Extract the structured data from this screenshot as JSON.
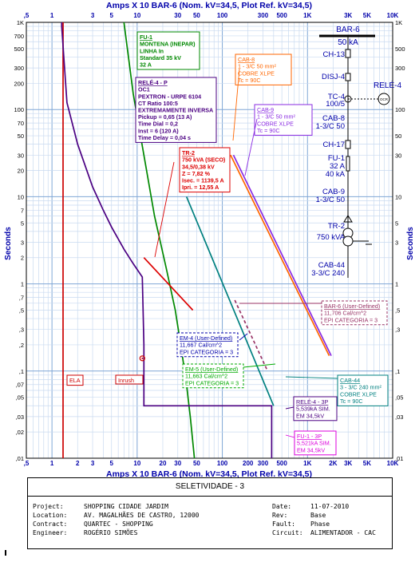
{
  "header": {
    "top_axis_title": "Amps X 10  BAR-6 (Nom. kV=34,5, Plot Ref. kV=34,5)",
    "bottom_axis_title": "Amps X 10  BAR-6 (Nom. kV=34,5, Plot Ref. kV=34,5)"
  },
  "chart_data": {
    "type": "line",
    "scale": "log-log",
    "xlabel": "Amps X 10  BAR-6 (Nom. kV=34,5, Plot Ref. kV=34,5)",
    "ylabel": "Seconds",
    "xlim": [
      0.5,
      10000
    ],
    "ylim": [
      0.01,
      1000
    ],
    "x_ticks": [
      {
        "v": 0.5,
        "label": ",5"
      },
      {
        "v": 1,
        "label": "1"
      },
      {
        "v": 3,
        "label": "3"
      },
      {
        "v": 5,
        "label": "5"
      },
      {
        "v": 10,
        "label": "10"
      },
      {
        "v": 30,
        "label": "30"
      },
      {
        "v": 50,
        "label": "50"
      },
      {
        "v": 100,
        "label": "100"
      },
      {
        "v": 300,
        "label": "300"
      },
      {
        "v": 500,
        "label": "500"
      },
      {
        "v": 1000,
        "label": "1K"
      },
      {
        "v": 3000,
        "label": "3K"
      },
      {
        "v": 5000,
        "label": "5K"
      },
      {
        "v": 10000,
        "label": "10K"
      }
    ],
    "x_ticks_bottom": [
      {
        "v": 0.5,
        "label": ",5"
      },
      {
        "v": 1,
        "label": "1"
      },
      {
        "v": 2,
        "label": "2"
      },
      {
        "v": 3,
        "label": "3"
      },
      {
        "v": 5,
        "label": "5"
      },
      {
        "v": 10,
        "label": "10"
      },
      {
        "v": 20,
        "label": "20"
      },
      {
        "v": 30,
        "label": "30"
      },
      {
        "v": 50,
        "label": "50"
      },
      {
        "v": 100,
        "label": "100"
      },
      {
        "v": 200,
        "label": "200"
      },
      {
        "v": 300,
        "label": "300"
      },
      {
        "v": 500,
        "label": "500"
      },
      {
        "v": 1000,
        "label": "1K"
      },
      {
        "v": 2000,
        "label": "2K"
      },
      {
        "v": 3000,
        "label": "3K"
      },
      {
        "v": 5000,
        "label": "5K"
      },
      {
        "v": 10000,
        "label": "10K"
      }
    ],
    "y_ticks": [
      {
        "v": 1000,
        "label": "1K"
      },
      {
        "v": 500,
        "label": "500"
      },
      {
        "v": 300,
        "label": "300"
      },
      {
        "v": 100,
        "label": "100"
      },
      {
        "v": 50,
        "label": "50"
      },
      {
        "v": 30,
        "label": "30"
      },
      {
        "v": 10,
        "label": "10"
      },
      {
        "v": 5,
        "label": "5"
      },
      {
        "v": 3,
        "label": "3"
      },
      {
        "v": 1,
        "label": "1"
      },
      {
        "v": 0.5,
        "label": ",5"
      },
      {
        "v": 0.3,
        "label": ",3"
      },
      {
        "v": 0.1,
        "label": ",1"
      },
      {
        "v": 0.05,
        "label": ",05"
      },
      {
        "v": 0.03,
        "label": ",03"
      },
      {
        "v": 0.01,
        "label": ",01"
      }
    ],
    "y_ticks_left": [
      {
        "v": 1000,
        "label": "1K"
      },
      {
        "v": 700,
        "label": "700"
      },
      {
        "v": 500,
        "label": "500"
      },
      {
        "v": 300,
        "label": "300"
      },
      {
        "v": 200,
        "label": "200"
      },
      {
        "v": 100,
        "label": "100"
      },
      {
        "v": 70,
        "label": "70"
      },
      {
        "v": 50,
        "label": "50"
      },
      {
        "v": 30,
        "label": "30"
      },
      {
        "v": 20,
        "label": "20"
      },
      {
        "v": 10,
        "label": "10"
      },
      {
        "v": 7,
        "label": "7"
      },
      {
        "v": 5,
        "label": "5"
      },
      {
        "v": 3,
        "label": "3"
      },
      {
        "v": 2,
        "label": "2"
      },
      {
        "v": 1,
        "label": "1"
      },
      {
        "v": 0.7,
        "label": ",7"
      },
      {
        "v": 0.5,
        "label": ",5"
      },
      {
        "v": 0.3,
        "label": ",3"
      },
      {
        "v": 0.2,
        "label": ",2"
      },
      {
        "v": 0.1,
        "label": ",1"
      },
      {
        "v": 0.07,
        "label": ",07"
      },
      {
        "v": 0.05,
        "label": ",05"
      },
      {
        "v": 0.03,
        "label": ",03"
      },
      {
        "v": 0.02,
        "label": ",02"
      },
      {
        "v": 0.01,
        "label": ",01"
      }
    ],
    "grid": true,
    "series": [
      {
        "name": "ELA",
        "color": "#cc0000",
        "points": [
          [
            1.35,
            1000
          ],
          [
            1.35,
            0.01
          ]
        ]
      },
      {
        "name": "FU-1",
        "color": "#008800",
        "points": [
          [
            7,
            1000
          ],
          [
            9,
            150
          ],
          [
            12,
            30
          ],
          [
            16,
            6
          ],
          [
            22,
            1.5
          ],
          [
            28,
            0.5
          ],
          [
            33,
            0.18
          ],
          [
            38,
            0.07
          ],
          [
            42,
            0.03
          ],
          [
            47,
            0.01
          ]
        ]
      },
      {
        "name": "RELÉ-4 - P",
        "color": "#4b0082",
        "points": [
          [
            1.3,
            1000
          ],
          [
            1.3,
            900
          ],
          [
            1.5,
            120
          ],
          [
            2,
            40
          ],
          [
            3,
            13
          ],
          [
            4,
            7
          ],
          [
            5,
            4.5
          ],
          [
            7,
            2.5
          ],
          [
            9,
            1.7
          ],
          [
            11.5,
            1.2
          ],
          [
            12,
            0.2
          ],
          [
            12,
            0.04
          ],
          [
            380,
            0.04
          ],
          [
            380,
            0.01
          ]
        ]
      },
      {
        "name": "TR-2 damage",
        "color": "#dd0000",
        "points": [
          [
            12,
            2
          ],
          [
            45,
            0.5
          ]
        ]
      },
      {
        "name": "CAB-8",
        "color": "#ff6600",
        "points": [
          [
            125,
            30
          ],
          [
            1800,
            0.15
          ]
        ]
      },
      {
        "name": "CAB-9",
        "color": "#8a2be2",
        "points": [
          [
            135,
            30
          ],
          [
            1900,
            0.15
          ]
        ]
      },
      {
        "name": "CAB-44",
        "color": "#008080",
        "points": [
          [
            38,
            10
          ],
          [
            400,
            0.04
          ]
        ]
      },
      {
        "name": "BAR-6 arc",
        "color": "#993366",
        "points": [
          [
            140,
            0.65
          ],
          [
            340,
            0.1
          ]
        ]
      }
    ],
    "markers": [
      {
        "label": "Inrush",
        "x": 11.5,
        "y": 0.14,
        "color": "#cc0000"
      }
    ],
    "annotations": [
      {
        "id": "fu1",
        "color": "#008800",
        "bg": "#ffffff",
        "dashed": false,
        "lines": [
          "FU-1",
          "MONTENA (INEPAR)",
          "LINHA In",
          "Standard  35 kV",
          "32 A"
        ]
      },
      {
        "id": "rele4",
        "color": "#4b0082",
        "bg": "#ffffff",
        "dashed": false,
        "lines": [
          "RELÉ-4 - P",
          "OC1",
          "PEXTRON - URPE 6104",
          "CT Ratio 100:5",
          "EXTREMAMENTE INVERSA",
          "Pickup = 0,65 (13 A)",
          "Time Dial = 0,2",
          "Inst = 6 (120 A)",
          "Time Delay = 0,04 s"
        ]
      },
      {
        "id": "cab8",
        "color": "#ff6600",
        "bg": "#ffffff",
        "dashed": false,
        "lines": [
          "CAB-8",
          "1 - 3/C 50 mm²",
          "COBRE  XLPE",
          "Tc = 90C"
        ]
      },
      {
        "id": "cab9",
        "color": "#8a2be2",
        "bg": "#ffffff",
        "dashed": false,
        "lines": [
          "CAB-9",
          "1 - 3/C 50 mm²",
          "COBRE  XLPE",
          "Tc = 90C"
        ]
      },
      {
        "id": "tr2",
        "color": "#dd0000",
        "bg": "#ffffff",
        "dashed": false,
        "lines": [
          "TR-2",
          "750 kVA (SECO)",
          "34,5/0,38 kV",
          "Z = 7,82 %",
          "Isec. = 1139,5 A",
          "Ipri. = 12,55 A"
        ]
      },
      {
        "id": "bar6",
        "color": "#993366",
        "bg": "#ffffff",
        "dashed": true,
        "lines": [
          "BAR-6 (User-Defined)",
          "11,706 Cal/cm^2",
          "EPI CATEGORIA = 3"
        ]
      },
      {
        "id": "em4",
        "color": "#0000aa",
        "bg": "#ffffff",
        "dashed": true,
        "lines": [
          "EM-4 (User-Defined)",
          "11,667 Cal/cm^2",
          "EPI CATEGORIA = 3"
        ]
      },
      {
        "id": "em5",
        "color": "#00aa00",
        "bg": "#ffffff",
        "dashed": true,
        "lines": [
          "EM-5 (User-Defined)",
          "11,663 Cal/cm^2",
          "EPI CATEGORIA = 3"
        ]
      },
      {
        "id": "cab44",
        "color": "#008080",
        "bg": "#ffffff",
        "dashed": false,
        "lines": [
          "CAB-44",
          "3 - 3/C 240 mm²",
          "COBRE  XLPE",
          "Tc = 90C"
        ]
      },
      {
        "id": "rele4_3p",
        "color": "#4b0082",
        "bg": "#ffffff",
        "dashed": false,
        "lines": [
          "RELÉ-4 - 3P",
          "5,539kA SIM.",
          "EM 34,5kV"
        ]
      },
      {
        "id": "fu1_3p",
        "color": "#dd00dd",
        "bg": "#ffffff",
        "dashed": false,
        "lines": [
          "FU-1 - 3P",
          "5,521kA SIM.",
          "EM 34,5kV"
        ]
      },
      {
        "id": "ela",
        "color": "#cc0000",
        "bg": "#ffffff",
        "dashed": false,
        "lines": [
          "ELA"
        ]
      }
    ],
    "one_line": {
      "color": "#0000aa",
      "bus": [
        "BAR-6",
        "50 kA"
      ],
      "items": [
        "CH-13",
        "DISJ-4",
        "TC-4",
        "100/5",
        "CAB-8",
        "1-3/C 50",
        "CH-17",
        "FU-1",
        "32 A",
        "40 kA",
        "CAB-9",
        "1-3/C 50",
        "TR-2",
        "750 kVA",
        "CAB-44",
        "3-3/C 240"
      ],
      "relay_label": "RELÉ-4",
      "relay_symbol": "OCR"
    }
  },
  "title_block": {
    "title": "SELETIVIDADE - 3",
    "left": [
      {
        "k": "Project:",
        "v": "SHOPPING CIDADE JARDIM"
      },
      {
        "k": "Location:",
        "v": "AV. MAGALHÃES DE CASTRO, 12000"
      },
      {
        "k": "Contract:",
        "v": "QUARTEC - SHOPPING"
      },
      {
        "k": "Engineer:",
        "v": "ROGÉRIO SIMÕES"
      }
    ],
    "right": [
      {
        "k": "Date:",
        "v": "11-07-2010"
      },
      {
        "k": "Rev:",
        "v": "Base"
      },
      {
        "k": "Fault:",
        "v": "Phase"
      },
      {
        "k": "Circuit:",
        "v": "ALIMENTADOR - CAC"
      }
    ]
  }
}
